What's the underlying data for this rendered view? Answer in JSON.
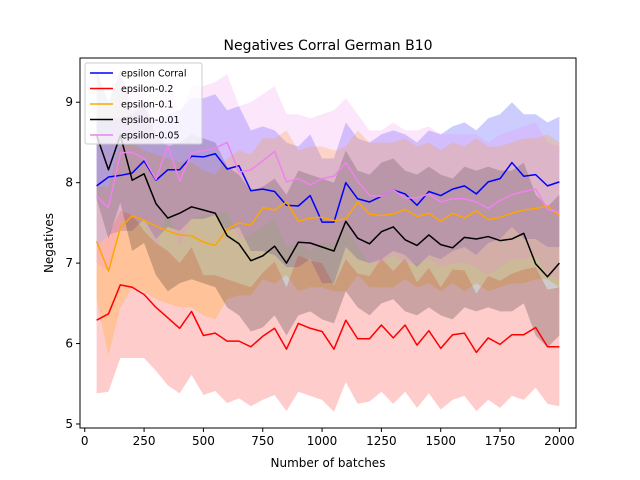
{
  "chart_data": {
    "type": "line",
    "title": "Negatives Corral German B10",
    "xlabel": "Number of batches",
    "ylabel": "Negatives",
    "xlim": [
      -20,
      2070
    ],
    "ylim": [
      4.95,
      9.55
    ],
    "xticks": [
      0,
      250,
      500,
      750,
      1000,
      1250,
      1500,
      1750,
      2000
    ],
    "yticks": [
      5,
      6,
      7,
      8,
      9
    ],
    "grid": false,
    "legend_position": "upper-left",
    "x": [
      50,
      100,
      150,
      200,
      250,
      300,
      350,
      400,
      450,
      500,
      550,
      600,
      650,
      700,
      750,
      800,
      850,
      900,
      950,
      1000,
      1050,
      1100,
      1150,
      1200,
      1250,
      1300,
      1350,
      1400,
      1450,
      1500,
      1550,
      1600,
      1650,
      1700,
      1750,
      1800,
      1850,
      1900,
      1950,
      2000
    ],
    "series": [
      {
        "name": "epsilon Corral",
        "color": "#0000ff",
        "band_opacity": 0.2,
        "values": [
          7.96,
          8.07,
          8.09,
          8.12,
          8.27,
          8.03,
          8.16,
          8.16,
          8.33,
          8.32,
          8.36,
          8.17,
          8.21,
          7.9,
          7.92,
          7.89,
          7.72,
          7.71,
          7.84,
          7.51,
          7.51,
          8.0,
          7.8,
          7.76,
          7.83,
          7.91,
          7.86,
          7.72,
          7.89,
          7.84,
          7.92,
          7.96,
          7.86,
          8.01,
          8.05,
          8.25,
          8.08,
          8.1,
          7.96,
          8.01
        ],
        "lower": [
          7.2,
          7.35,
          7.4,
          7.4,
          7.55,
          7.3,
          7.45,
          7.4,
          7.55,
          7.55,
          7.6,
          7.4,
          7.45,
          7.15,
          7.15,
          7.1,
          6.95,
          6.95,
          7.05,
          6.75,
          6.75,
          7.2,
          7.05,
          7.0,
          7.05,
          7.15,
          7.1,
          6.95,
          7.1,
          7.05,
          7.15,
          7.2,
          7.1,
          7.25,
          7.3,
          7.45,
          7.3,
          7.3,
          7.2,
          7.2
        ],
        "upper": [
          8.75,
          8.8,
          8.8,
          8.85,
          8.95,
          8.75,
          8.85,
          8.9,
          9.05,
          9.05,
          9.1,
          8.9,
          8.95,
          8.65,
          8.7,
          8.65,
          8.5,
          8.45,
          8.6,
          8.3,
          8.3,
          8.75,
          8.55,
          8.5,
          8.6,
          8.65,
          8.6,
          8.5,
          8.65,
          8.6,
          8.7,
          8.75,
          8.65,
          8.8,
          8.85,
          9.0,
          8.85,
          8.85,
          8.75,
          8.82
        ]
      },
      {
        "name": "epsilon-0.2",
        "color": "#ff0000",
        "band_opacity": 0.2,
        "values": [
          6.29,
          6.37,
          6.73,
          6.7,
          6.61,
          6.45,
          6.32,
          6.19,
          6.4,
          6.1,
          6.13,
          6.03,
          6.03,
          5.96,
          6.09,
          6.19,
          5.93,
          6.25,
          6.19,
          6.15,
          5.93,
          6.29,
          6.06,
          6.06,
          6.23,
          6.07,
          6.23,
          5.98,
          6.16,
          5.94,
          6.11,
          6.13,
          5.89,
          6.07,
          5.99,
          6.11,
          6.11,
          6.2,
          5.96,
          5.96
        ],
        "lower": [
          5.38,
          5.4,
          5.82,
          5.82,
          5.82,
          5.66,
          5.48,
          5.38,
          5.61,
          5.36,
          5.41,
          5.26,
          5.32,
          5.22,
          5.3,
          5.36,
          5.16,
          5.4,
          5.35,
          5.3,
          5.15,
          5.52,
          5.25,
          5.28,
          5.4,
          5.25,
          5.4,
          5.2,
          5.38,
          5.18,
          5.3,
          5.35,
          5.16,
          5.3,
          5.2,
          5.35,
          5.3,
          5.45,
          5.25,
          5.22
        ],
        "upper": [
          7.2,
          7.35,
          7.65,
          7.6,
          7.4,
          7.25,
          7.15,
          7.0,
          7.2,
          6.85,
          6.85,
          6.8,
          6.75,
          6.7,
          6.88,
          7.02,
          6.7,
          7.1,
          7.03,
          7.0,
          6.72,
          7.05,
          6.87,
          6.84,
          7.06,
          6.9,
          7.06,
          6.76,
          6.94,
          6.7,
          6.92,
          6.91,
          6.62,
          6.84,
          6.78,
          6.87,
          6.92,
          6.95,
          6.67,
          6.7
        ]
      },
      {
        "name": "epsilon-0.1",
        "color": "#ffa500",
        "band_opacity": 0.25,
        "values": [
          7.27,
          6.9,
          7.44,
          7.59,
          7.53,
          7.46,
          7.4,
          7.35,
          7.34,
          7.26,
          7.22,
          7.42,
          7.5,
          7.47,
          7.69,
          7.66,
          7.76,
          7.52,
          7.56,
          7.57,
          7.53,
          7.55,
          7.76,
          7.61,
          7.59,
          7.61,
          7.67,
          7.58,
          7.62,
          7.52,
          7.62,
          7.56,
          7.65,
          7.54,
          7.57,
          7.62,
          7.66,
          7.68,
          7.71,
          7.59
        ],
        "lower": [
          6.55,
          5.85,
          6.45,
          6.7,
          6.65,
          6.55,
          6.5,
          6.45,
          6.45,
          6.35,
          6.3,
          6.55,
          6.6,
          6.6,
          6.8,
          6.75,
          6.85,
          6.65,
          6.7,
          6.7,
          6.65,
          6.65,
          6.85,
          6.7,
          6.7,
          6.7,
          6.8,
          6.7,
          6.75,
          6.65,
          6.75,
          6.65,
          6.75,
          6.65,
          6.7,
          6.75,
          6.75,
          6.8,
          6.8,
          6.7
        ],
        "upper": [
          7.95,
          7.95,
          8.45,
          8.5,
          8.4,
          8.35,
          8.3,
          8.25,
          8.25,
          8.15,
          8.1,
          8.3,
          8.4,
          8.35,
          8.55,
          8.55,
          8.65,
          8.4,
          8.45,
          8.45,
          8.4,
          8.45,
          8.65,
          8.5,
          8.5,
          8.5,
          8.55,
          8.45,
          8.5,
          8.4,
          8.5,
          8.45,
          8.55,
          8.45,
          8.45,
          8.5,
          8.55,
          8.55,
          8.6,
          8.5
        ]
      },
      {
        "name": "epsilon-0.01",
        "color": "#000000",
        "band_opacity": 0.2,
        "values": [
          8.59,
          8.16,
          8.59,
          8.03,
          8.11,
          7.74,
          7.56,
          7.62,
          7.7,
          7.66,
          7.62,
          7.34,
          7.24,
          7.03,
          7.09,
          7.21,
          7.0,
          7.26,
          7.25,
          7.2,
          7.15,
          7.52,
          7.31,
          7.24,
          7.39,
          7.45,
          7.29,
          7.22,
          7.35,
          7.23,
          7.19,
          7.32,
          7.3,
          7.33,
          7.28,
          7.3,
          7.37,
          6.99,
          6.83,
          7.0
        ],
        "lower": [
          7.8,
          7.3,
          7.75,
          7.15,
          7.25,
          6.85,
          6.65,
          6.75,
          6.8,
          6.75,
          6.7,
          6.45,
          6.35,
          6.15,
          6.2,
          6.35,
          6.1,
          6.35,
          6.4,
          6.3,
          6.25,
          6.65,
          6.45,
          6.35,
          6.5,
          6.55,
          6.4,
          6.35,
          6.45,
          6.35,
          6.3,
          6.45,
          6.4,
          6.45,
          6.4,
          6.4,
          6.5,
          6.1,
          5.95,
          6.1
        ],
        "upper": [
          9.4,
          9.0,
          9.4,
          8.9,
          8.95,
          8.6,
          8.45,
          8.5,
          8.6,
          8.55,
          8.5,
          8.2,
          8.1,
          7.9,
          7.95,
          8.05,
          7.85,
          8.15,
          8.1,
          8.05,
          8.0,
          8.4,
          8.15,
          8.1,
          8.25,
          8.3,
          8.15,
          8.1,
          8.2,
          8.1,
          8.05,
          8.2,
          8.15,
          8.2,
          8.15,
          8.15,
          8.25,
          7.85,
          7.7,
          7.85
        ]
      },
      {
        "name": "epsilon-0.05",
        "color": "#ee82ee",
        "band_opacity": 0.2,
        "values": [
          7.83,
          7.69,
          8.37,
          8.38,
          8.3,
          8.04,
          8.46,
          8.02,
          8.37,
          8.4,
          8.43,
          8.5,
          8.13,
          8.16,
          8.27,
          8.39,
          8.01,
          8.05,
          7.97,
          8.05,
          8.08,
          8.25,
          8.02,
          7.84,
          7.83,
          7.91,
          7.81,
          7.81,
          7.86,
          7.76,
          7.8,
          7.8,
          7.76,
          7.68,
          7.78,
          7.85,
          7.89,
          7.92,
          7.67,
          7.63
        ],
        "lower": [
          7.0,
          6.9,
          7.55,
          7.55,
          7.5,
          7.2,
          7.65,
          7.2,
          7.55,
          7.6,
          7.6,
          7.65,
          7.3,
          7.35,
          7.45,
          7.55,
          7.2,
          7.25,
          7.15,
          7.25,
          7.25,
          7.45,
          7.2,
          7.0,
          7.0,
          7.1,
          7.0,
          7.0,
          7.05,
          6.95,
          7.0,
          7.0,
          6.95,
          6.85,
          6.95,
          7.05,
          7.05,
          7.1,
          6.85,
          6.8
        ],
        "upper": [
          8.65,
          8.5,
          9.2,
          9.2,
          9.1,
          8.85,
          9.3,
          8.85,
          9.2,
          9.2,
          9.25,
          9.35,
          8.95,
          9.0,
          9.1,
          9.2,
          8.85,
          8.85,
          8.8,
          8.85,
          8.9,
          9.05,
          8.85,
          8.65,
          8.65,
          8.75,
          8.65,
          8.65,
          8.7,
          8.6,
          8.6,
          8.6,
          8.6,
          8.5,
          8.6,
          8.65,
          8.7,
          8.75,
          8.5,
          8.45
        ]
      }
    ]
  }
}
